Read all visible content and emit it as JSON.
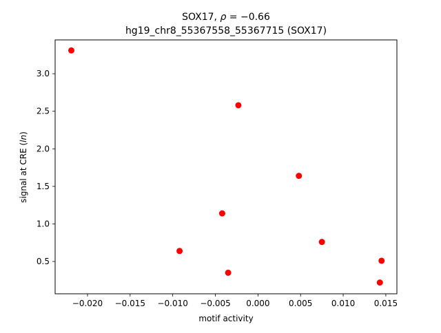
{
  "chart_data": {
    "type": "scatter",
    "title_line1": "SOX17, ρ = −0.66",
    "title_line2": "hg19_chr8_55367558_55367715 (SOX17)",
    "xlabel": "motif activity",
    "ylabel": "signal at CRE (ln)",
    "xlim": [
      -0.0238,
      0.0163
    ],
    "ylim": [
      0.07,
      3.45
    ],
    "xticks": [
      -0.02,
      -0.015,
      -0.01,
      -0.005,
      0.0,
      0.005,
      0.01,
      0.015
    ],
    "xtick_labels": [
      "−0.020",
      "−0.015",
      "−0.010",
      "−0.005",
      "0.000",
      "0.005",
      "0.010",
      "0.015"
    ],
    "yticks": [
      0.5,
      1.0,
      1.5,
      2.0,
      2.5,
      3.0
    ],
    "ytick_labels": [
      "0.5",
      "1.0",
      "1.5",
      "2.0",
      "2.5",
      "3.0"
    ],
    "grid": false,
    "marker_color": "#ff0000",
    "points": [
      {
        "x": -0.0219,
        "y": 3.31
      },
      {
        "x": -0.0023,
        "y": 2.58
      },
      {
        "x": 0.0048,
        "y": 1.64
      },
      {
        "x": -0.0042,
        "y": 1.14
      },
      {
        "x": -0.0092,
        "y": 0.64
      },
      {
        "x": 0.0075,
        "y": 0.76
      },
      {
        "x": -0.0035,
        "y": 0.35
      },
      {
        "x": 0.0145,
        "y": 0.51
      },
      {
        "x": 0.0143,
        "y": 0.22
      }
    ]
  }
}
